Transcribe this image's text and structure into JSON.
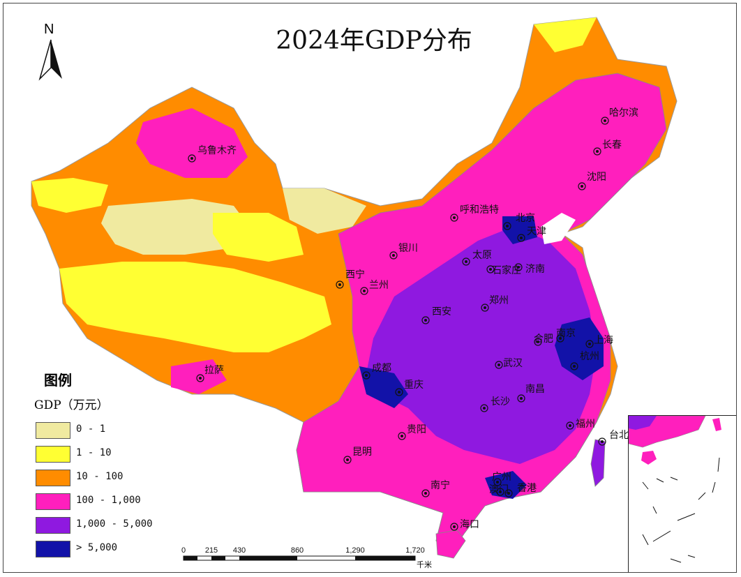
{
  "title": "2024年GDP分布",
  "north_arrow": {
    "label": "N"
  },
  "legend": {
    "title": "图例",
    "unit": "GDP（万元）",
    "items": [
      {
        "label": "0 - 1",
        "color": "#f0eaa0"
      },
      {
        "label": "1 - 10",
        "color": "#ffff33"
      },
      {
        "label": "10 - 100",
        "color": "#ff8c00"
      },
      {
        "label": "100 - 1,000",
        "color": "#ff1fbd"
      },
      {
        "label": "1,000 - 5,000",
        "color": "#8f19e0"
      },
      {
        "label": "> 5,000",
        "color": "#1212a8"
      }
    ]
  },
  "cities": [
    {
      "name": "哈尔滨"
    },
    {
      "name": "长春"
    },
    {
      "name": "沈阳"
    },
    {
      "name": "乌鲁木齐"
    },
    {
      "name": "呼和浩特"
    },
    {
      "name": "北京"
    },
    {
      "name": "天津"
    },
    {
      "name": "银川"
    },
    {
      "name": "太原"
    },
    {
      "name": "石家庄"
    },
    {
      "name": "济南"
    },
    {
      "name": "西宁"
    },
    {
      "name": "兰州"
    },
    {
      "name": "郑州"
    },
    {
      "name": "西安"
    },
    {
      "name": "合肥"
    },
    {
      "name": "南京"
    },
    {
      "name": "上海"
    },
    {
      "name": "杭州"
    },
    {
      "name": "拉萨"
    },
    {
      "name": "成都"
    },
    {
      "name": "武汉"
    },
    {
      "name": "重庆"
    },
    {
      "name": "南昌"
    },
    {
      "name": "长沙"
    },
    {
      "name": "贵阳"
    },
    {
      "name": "福州"
    },
    {
      "name": "台北"
    },
    {
      "name": "昆明"
    },
    {
      "name": "广州"
    },
    {
      "name": "澳门"
    },
    {
      "name": "香港"
    },
    {
      "name": "南宁"
    },
    {
      "name": "海口"
    }
  ],
  "scale_bar": {
    "ticks": [
      "0",
      "215",
      "430",
      "860",
      "1,290",
      "1,720"
    ],
    "unit": "千米"
  }
}
